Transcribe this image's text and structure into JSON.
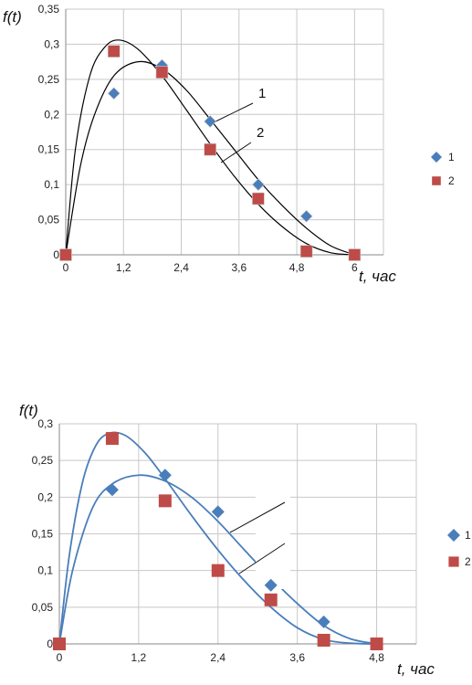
{
  "chart_data": [
    {
      "type": "scatter",
      "ylabel": "f(t)",
      "xlabel": "t, час",
      "x_ticks": [
        "0",
        "1,2",
        "2,4",
        "3,6",
        "4,8",
        "6"
      ],
      "y_ticks": [
        "0",
        "0,05",
        "0,1",
        "0,15",
        "0,2",
        "0,25",
        "0,3",
        "0,35"
      ],
      "xlim": [
        0,
        6.6
      ],
      "ylim": [
        0,
        0.35
      ],
      "grid": true,
      "legend": "right",
      "series": [
        {
          "name": "1",
          "marker": "diamond",
          "color": "#4a7ebb",
          "x": [
            0,
            1,
            2,
            3,
            4,
            5,
            6
          ],
          "y": [
            0,
            0.23,
            0.27,
            0.19,
            0.1,
            0.055,
            0
          ]
        },
        {
          "name": "2",
          "marker": "square",
          "color": "#be4b48",
          "x": [
            0,
            1,
            2,
            3,
            4,
            5,
            6
          ],
          "y": [
            0,
            0.29,
            0.26,
            0.15,
            0.08,
            0.005,
            0
          ]
        }
      ],
      "curves": [
        {
          "color": "#000000",
          "x": [
            0,
            0.3,
            0.6,
            1.0,
            1.5,
            2.0,
            2.5,
            3.0,
            3.5,
            4.0,
            4.5,
            5.0,
            5.5,
            6.0
          ],
          "y": [
            0,
            0.125,
            0.2,
            0.255,
            0.275,
            0.265,
            0.235,
            0.193,
            0.15,
            0.107,
            0.07,
            0.038,
            0.013,
            0
          ]
        },
        {
          "color": "#000000",
          "x": [
            0,
            0.2,
            0.5,
            0.8,
            1.1,
            1.5,
            2.0,
            2.5,
            3.0,
            3.5,
            4.0,
            4.5,
            5.0,
            5.5,
            6.0
          ],
          "y": [
            0,
            0.15,
            0.255,
            0.295,
            0.306,
            0.293,
            0.255,
            0.207,
            0.158,
            0.112,
            0.072,
            0.04,
            0.016,
            0.003,
            0
          ]
        }
      ],
      "callouts": [
        "1",
        "2"
      ]
    },
    {
      "type": "scatter",
      "ylabel": "f(t)",
      "xlabel": "t, час",
      "x_ticks": [
        "0",
        "1,2",
        "2,4",
        "3,6",
        "4,8"
      ],
      "y_ticks": [
        "0",
        "0,05",
        "0,1",
        "0,15",
        "0,2",
        "0,25",
        "0,3"
      ],
      "xlim": [
        0,
        5.4
      ],
      "ylim": [
        0,
        0.3
      ],
      "grid": true,
      "legend": "right",
      "series": [
        {
          "name": "1",
          "marker": "diamond",
          "color": "#4a7ebb",
          "x": [
            0,
            0.8,
            1.6,
            2.4,
            3.2,
            4.0,
            4.8
          ],
          "y": [
            0,
            0.21,
            0.23,
            0.18,
            0.08,
            0.03,
            0
          ]
        },
        {
          "name": "2",
          "marker": "square",
          "color": "#be4b48",
          "x": [
            0,
            0.8,
            1.6,
            2.4,
            3.2,
            4.0,
            4.8
          ],
          "y": [
            0,
            0.28,
            0.195,
            0.1,
            0.06,
            0.005,
            0
          ]
        }
      ],
      "curves": [
        {
          "color": "#4a7ebb",
          "x": [
            0,
            0.2,
            0.5,
            0.8,
            1.2,
            1.6,
            2.0,
            2.4,
            2.8,
            3.2,
            3.6,
            4.0,
            4.4,
            4.8
          ],
          "y": [
            0,
            0.1,
            0.185,
            0.218,
            0.23,
            0.222,
            0.2,
            0.167,
            0.128,
            0.09,
            0.055,
            0.025,
            0.007,
            0
          ]
        },
        {
          "color": "#4a7ebb",
          "x": [
            0,
            0.15,
            0.35,
            0.55,
            0.75,
            1.0,
            1.3,
            1.6,
            2.0,
            2.4,
            2.8,
            3.2,
            3.6,
            4.0,
            4.4,
            4.8
          ],
          "y": [
            0,
            0.12,
            0.22,
            0.27,
            0.287,
            0.284,
            0.26,
            0.225,
            0.175,
            0.128,
            0.086,
            0.05,
            0.022,
            0.006,
            0.001,
            0
          ]
        }
      ],
      "callouts": []
    }
  ]
}
